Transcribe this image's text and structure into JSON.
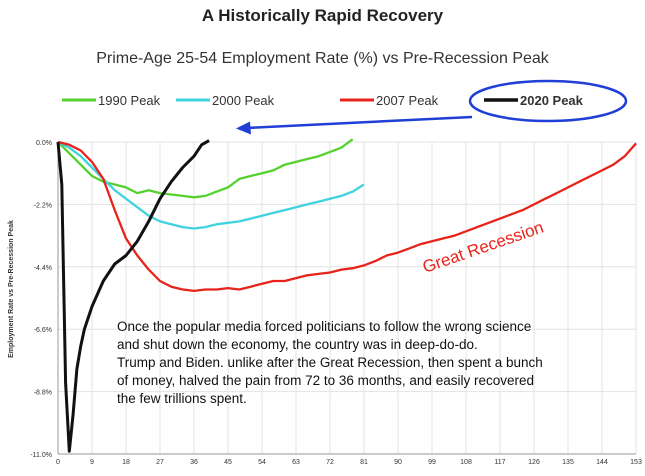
{
  "page": {
    "title": "A Historically Rapid Recovery",
    "subtitle": "Prime-Age 25-54 Employment Rate (%) vs  Pre-Recession Peak"
  },
  "annotation": {
    "line1": "Once the popular media forced politicians to follow the wrong science",
    "line2": "and shut down the economy, the country was in deep-do-do.",
    "line3": "Trump and Biden. unlike after the Great Recession, then spent a bunch",
    "line4": "of money, halved the pain from 72 to 36 months, and easily recovered",
    "line5": "the few trillions spent.",
    "great_recession": "Great  Recession"
  },
  "chart_data": {
    "type": "line",
    "title": "Prime-Age 25-54 Employment Rate (%) vs  Pre-Recession Peak",
    "ylabel": "Employment Rate vs Pre-Recession Peak",
    "xlabel": "",
    "xlim": [
      0,
      153
    ],
    "ylim": [
      -11.0,
      0.0
    ],
    "x_ticks": [
      0,
      9,
      18,
      27,
      36,
      45,
      54,
      63,
      72,
      81,
      90,
      99,
      108,
      117,
      126,
      135,
      144,
      153
    ],
    "y_ticks": [
      0.0,
      -2.2,
      -4.4,
      -6.6,
      -8.8,
      -11.0
    ],
    "y_tick_labels": [
      "0.0%",
      "-2.2%",
      "-4.4%",
      "-6.6%",
      "-8.8%",
      "-11.0%"
    ],
    "grid": true,
    "legend_position": "top",
    "series": [
      {
        "name": "1990 Peak",
        "color": "#55d12e",
        "x": [
          0,
          3,
          6,
          9,
          12,
          15,
          18,
          21,
          24,
          27,
          30,
          33,
          36,
          39,
          42,
          45,
          48,
          51,
          54,
          57,
          60,
          63,
          66,
          69,
          72,
          75,
          78
        ],
        "y": [
          0,
          -0.4,
          -0.8,
          -1.2,
          -1.4,
          -1.5,
          -1.6,
          -1.8,
          -1.7,
          -1.8,
          -1.85,
          -1.9,
          -1.95,
          -1.9,
          -1.75,
          -1.6,
          -1.3,
          -1.2,
          -1.1,
          -1.0,
          -0.8,
          -0.7,
          -0.6,
          -0.5,
          -0.35,
          -0.2,
          0.1
        ]
      },
      {
        "name": "2000 Peak",
        "color": "#3fd3e0",
        "x": [
          0,
          3,
          6,
          9,
          12,
          15,
          18,
          21,
          24,
          27,
          30,
          33,
          36,
          39,
          42,
          45,
          48,
          51,
          54,
          57,
          60,
          63,
          66,
          69,
          72,
          75,
          78,
          81
        ],
        "y": [
          0,
          -0.2,
          -0.5,
          -0.9,
          -1.3,
          -1.7,
          -2.0,
          -2.3,
          -2.6,
          -2.8,
          -2.9,
          -3.0,
          -3.05,
          -3.0,
          -2.9,
          -2.85,
          -2.8,
          -2.7,
          -2.6,
          -2.5,
          -2.4,
          -2.3,
          -2.2,
          -2.1,
          -2.0,
          -1.9,
          -1.75,
          -1.5
        ]
      },
      {
        "name": "2007 Peak",
        "color": "#e8231b",
        "x": [
          0,
          3,
          6,
          9,
          12,
          15,
          18,
          21,
          24,
          27,
          30,
          33,
          36,
          39,
          42,
          45,
          48,
          51,
          54,
          57,
          60,
          63,
          66,
          69,
          72,
          75,
          78,
          81,
          84,
          87,
          90,
          93,
          96,
          99,
          102,
          105,
          108,
          111,
          114,
          117,
          120,
          123,
          126,
          129,
          132,
          135,
          138,
          141,
          144,
          147,
          150,
          153
        ],
        "y": [
          0,
          -0.1,
          -0.3,
          -0.7,
          -1.3,
          -2.4,
          -3.4,
          -4.0,
          -4.5,
          -4.9,
          -5.1,
          -5.2,
          -5.25,
          -5.2,
          -5.2,
          -5.15,
          -5.2,
          -5.1,
          -5.0,
          -4.9,
          -4.9,
          -4.8,
          -4.7,
          -4.65,
          -4.6,
          -4.5,
          -4.45,
          -4.35,
          -4.2,
          -4.0,
          -3.9,
          -3.75,
          -3.6,
          -3.5,
          -3.4,
          -3.3,
          -3.15,
          -3.0,
          -2.85,
          -2.7,
          -2.55,
          -2.4,
          -2.2,
          -2.0,
          -1.8,
          -1.6,
          -1.4,
          -1.2,
          -1.0,
          -0.8,
          -0.5,
          -0.05
        ]
      },
      {
        "name": "2020 Peak",
        "color": "#111111",
        "x": [
          0,
          1,
          2,
          3,
          4,
          5,
          6,
          7,
          9,
          12,
          15,
          18,
          21,
          24,
          27,
          30,
          33,
          36,
          38,
          40
        ],
        "y": [
          0,
          -1.5,
          -8.5,
          -10.9,
          -9.6,
          -8.0,
          -7.2,
          -6.6,
          -5.8,
          -4.9,
          -4.3,
          -4.0,
          -3.5,
          -2.8,
          -2.0,
          -1.4,
          -0.9,
          -0.5,
          -0.1,
          0.05
        ]
      }
    ]
  },
  "legend": {
    "items": [
      {
        "name": "1990 Peak",
        "color": "#55d12e"
      },
      {
        "name": "2000 Peak",
        "color": "#3fd3e0"
      },
      {
        "name": "2007 Peak",
        "color": "#e8231b"
      },
      {
        "name": "2020 Peak",
        "color": "#111111"
      }
    ],
    "highlight_color": "#1f3fd6"
  }
}
